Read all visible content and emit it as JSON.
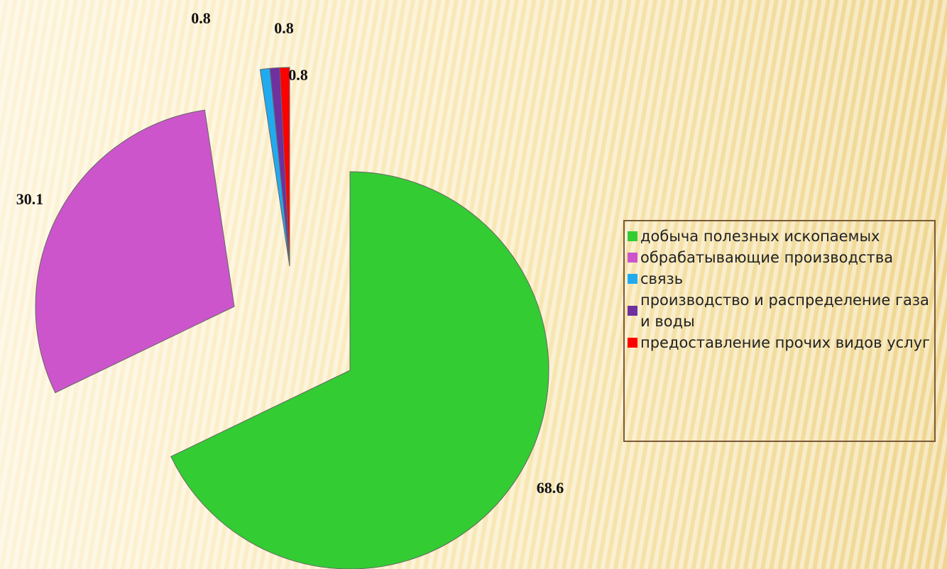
{
  "chart_data": {
    "type": "pie",
    "categories": [
      "добыча полезных ископаемых",
      "обрабатывающие производства",
      "связь",
      "производство и распределение газа и воды",
      "предоставление прочих видов услуг"
    ],
    "values": [
      68.6,
      30.1,
      0.8,
      0.8,
      0.8
    ],
    "colors": [
      "#33cc33",
      "#cc55cc",
      "#22aaee",
      "#7030a0",
      "#ff0000"
    ],
    "legend": "right"
  }
}
